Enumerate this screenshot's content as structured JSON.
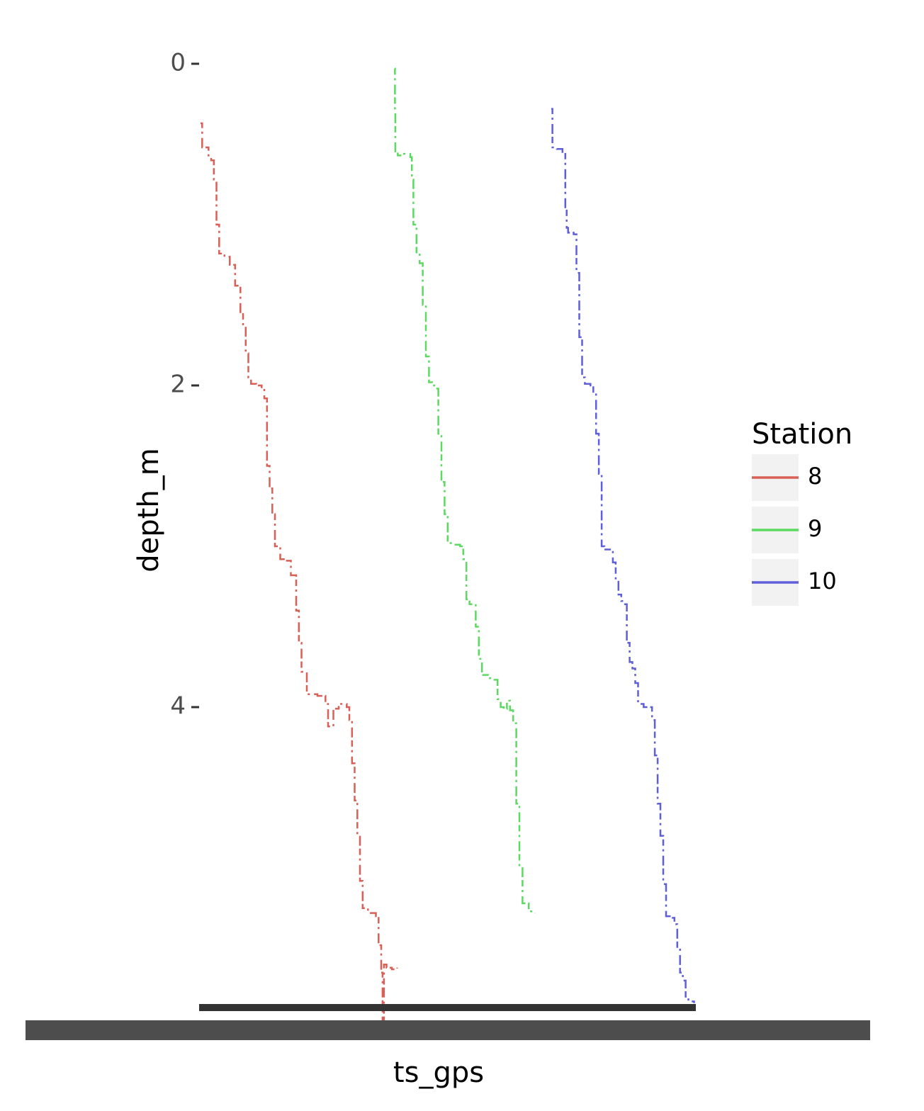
{
  "chart_data": {
    "type": "line",
    "xlabel": "ts_gps",
    "ylabel": "depth_m",
    "y_axis_reversed": true,
    "ylim": [
      0,
      5.95
    ],
    "y_ticks": [
      0,
      2,
      4
    ],
    "y_tick_labels": [
      "0",
      "2",
      "4"
    ],
    "x_tick_labels_overplotted": true,
    "grid": false,
    "legend": {
      "title": "Station",
      "placement": "right"
    },
    "series": [
      {
        "name": "8",
        "color": "#d95f57",
        "points": [
          [
            0,
            0.37
          ],
          [
            0.6,
            0.52
          ],
          [
            3,
            0.58
          ],
          [
            4,
            0.6
          ],
          [
            5,
            0.72
          ],
          [
            6,
            1.0
          ],
          [
            7,
            1.18
          ],
          [
            9,
            1.2
          ],
          [
            11,
            1.25
          ],
          [
            13,
            1.38
          ],
          [
            15,
            1.55
          ],
          [
            16,
            1.62
          ],
          [
            17,
            1.8
          ],
          [
            18,
            1.95
          ],
          [
            19,
            1.99
          ],
          [
            21,
            2.0
          ],
          [
            23,
            2.02
          ],
          [
            24,
            2.08
          ],
          [
            25,
            2.5
          ],
          [
            26,
            2.64
          ],
          [
            27,
            2.8
          ],
          [
            28,
            3.0
          ],
          [
            30,
            3.08
          ],
          [
            32,
            3.09
          ],
          [
            34,
            3.18
          ],
          [
            36,
            3.4
          ],
          [
            37,
            3.6
          ],
          [
            38,
            3.78
          ],
          [
            40,
            3.92
          ],
          [
            44,
            3.93
          ],
          [
            47,
            3.98
          ],
          [
            48,
            4.12
          ],
          [
            50,
            4.01
          ],
          [
            52,
            3.98
          ],
          [
            55,
            4.0
          ],
          [
            56,
            4.08
          ],
          [
            57,
            4.35
          ],
          [
            58,
            4.58
          ],
          [
            59,
            4.8
          ],
          [
            60,
            5.08
          ],
          [
            61,
            5.25
          ],
          [
            63,
            5.28
          ],
          [
            66,
            5.3
          ],
          [
            67,
            5.48
          ],
          [
            68,
            5.65
          ],
          [
            68.5,
            5.95
          ],
          [
            69,
            5.6
          ],
          [
            70,
            5.62
          ],
          [
            72,
            5.63
          ],
          [
            74,
            5.62
          ]
        ]
      },
      {
        "name": "9",
        "color": "#5bd960",
        "points": [
          [
            0,
            0.03
          ],
          [
            0.1,
            0.3
          ],
          [
            0.2,
            0.55
          ],
          [
            1,
            0.57
          ],
          [
            3,
            0.56
          ],
          [
            5,
            0.58
          ],
          [
            5.5,
            0.72
          ],
          [
            6,
            1.0
          ],
          [
            7,
            1.18
          ],
          [
            8,
            1.24
          ],
          [
            9,
            1.5
          ],
          [
            10,
            1.82
          ],
          [
            11,
            1.98
          ],
          [
            12,
            2.0
          ],
          [
            13,
            2.02
          ],
          [
            14,
            2.3
          ],
          [
            15,
            2.6
          ],
          [
            16,
            2.8
          ],
          [
            17,
            2.98
          ],
          [
            19,
            2.99
          ],
          [
            21,
            3.0
          ],
          [
            22,
            3.08
          ],
          [
            23,
            3.33
          ],
          [
            24,
            3.36
          ],
          [
            26,
            3.5
          ],
          [
            27,
            3.7
          ],
          [
            28,
            3.8
          ],
          [
            30,
            3.82
          ],
          [
            32,
            3.83
          ],
          [
            33,
            3.95
          ],
          [
            34,
            4.0
          ],
          [
            35,
            4.01
          ],
          [
            36,
            3.96
          ],
          [
            37,
            4.02
          ],
          [
            38,
            4.1
          ],
          [
            39,
            4.6
          ],
          [
            40,
            5.0
          ],
          [
            41,
            5.22
          ],
          [
            43,
            5.27
          ],
          [
            45,
            5.28
          ]
        ]
      },
      {
        "name": "10",
        "color": "#5f5fd9",
        "points": [
          [
            0,
            0.28
          ],
          [
            0.4,
            0.52
          ],
          [
            2,
            0.53
          ],
          [
            4,
            0.56
          ],
          [
            5,
            0.9
          ],
          [
            5.5,
            1.02
          ],
          [
            6,
            1.05
          ],
          [
            8,
            1.06
          ],
          [
            9,
            1.3
          ],
          [
            10,
            1.7
          ],
          [
            11,
            1.95
          ],
          [
            12,
            1.99
          ],
          [
            14,
            2.0
          ],
          [
            15,
            2.05
          ],
          [
            16,
            2.3
          ],
          [
            17,
            2.55
          ],
          [
            18,
            3.0
          ],
          [
            19,
            3.02
          ],
          [
            21,
            3.02
          ],
          [
            22,
            3.1
          ],
          [
            23,
            3.2
          ],
          [
            24,
            3.3
          ],
          [
            25,
            3.34
          ],
          [
            26,
            3.36
          ],
          [
            27,
            3.6
          ],
          [
            28,
            3.72
          ],
          [
            29,
            3.76
          ],
          [
            30,
            3.85
          ],
          [
            31,
            3.98
          ],
          [
            33,
            4.0
          ],
          [
            35,
            4.0
          ],
          [
            36,
            4.08
          ],
          [
            37,
            4.3
          ],
          [
            38,
            4.6
          ],
          [
            39,
            4.8
          ],
          [
            40,
            5.1
          ],
          [
            41,
            5.3
          ],
          [
            43,
            5.31
          ],
          [
            44,
            5.35
          ],
          [
            45,
            5.5
          ],
          [
            46,
            5.65
          ],
          [
            47,
            5.7
          ],
          [
            48,
            5.8
          ],
          [
            49,
            5.83
          ],
          [
            51,
            5.84
          ]
        ]
      }
    ]
  }
}
